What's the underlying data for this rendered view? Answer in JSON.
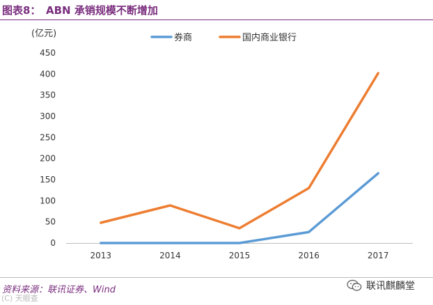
{
  "header": {
    "figure_label": "图表8：",
    "title": "ABN 承销规模不断增加"
  },
  "chart_data": {
    "type": "line",
    "title": "ABN 承销规模不断增加",
    "unit_label": "(亿元)",
    "xlabel": "",
    "ylabel": "(亿元)",
    "categories": [
      "2013",
      "2014",
      "2015",
      "2016",
      "2017"
    ],
    "series": [
      {
        "name": "券商",
        "color": "#5b9bd5",
        "values": [
          0,
          0,
          0,
          26,
          165
        ]
      },
      {
        "name": "国内商业银行",
        "color": "#ed7d31",
        "values": [
          48,
          89,
          35,
          130,
          402
        ]
      }
    ],
    "ylim": [
      0,
      450
    ],
    "yticks": [
      "0",
      "50",
      "100",
      "150",
      "200",
      "250",
      "300",
      "350",
      "400",
      "450"
    ],
    "legend_position": "top",
    "grid": false
  },
  "footer": {
    "source": "资料来源：联讯证券、Wind",
    "wechat_name": "联讯麒麟堂",
    "watermark": "(C) 天眼查"
  }
}
